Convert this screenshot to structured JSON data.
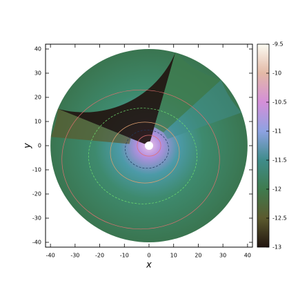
{
  "chart_data": {
    "type": "contour",
    "x_label": "x",
    "y_label": "y",
    "xlim": [
      -42,
      42
    ],
    "ylim": [
      -42,
      42
    ],
    "xticks": [
      -40,
      -30,
      -20,
      -10,
      0,
      10,
      20,
      30,
      40
    ],
    "yticks": [
      -40,
      -30,
      -20,
      -10,
      0,
      10,
      20,
      30,
      40
    ],
    "colorbar": {
      "clim": [
        -13,
        -9.5
      ],
      "ticks": [
        -13,
        -12.5,
        -12,
        -11.5,
        -11,
        -10.5,
        -10,
        -9.5
      ],
      "colors": [
        "#221510",
        "#5b5a2e",
        "#3f7b4e",
        "#3f8c8a",
        "#8ea2e2",
        "#d48fd8",
        "#e3b9a6",
        "#fbfbf2"
      ]
    }
  }
}
